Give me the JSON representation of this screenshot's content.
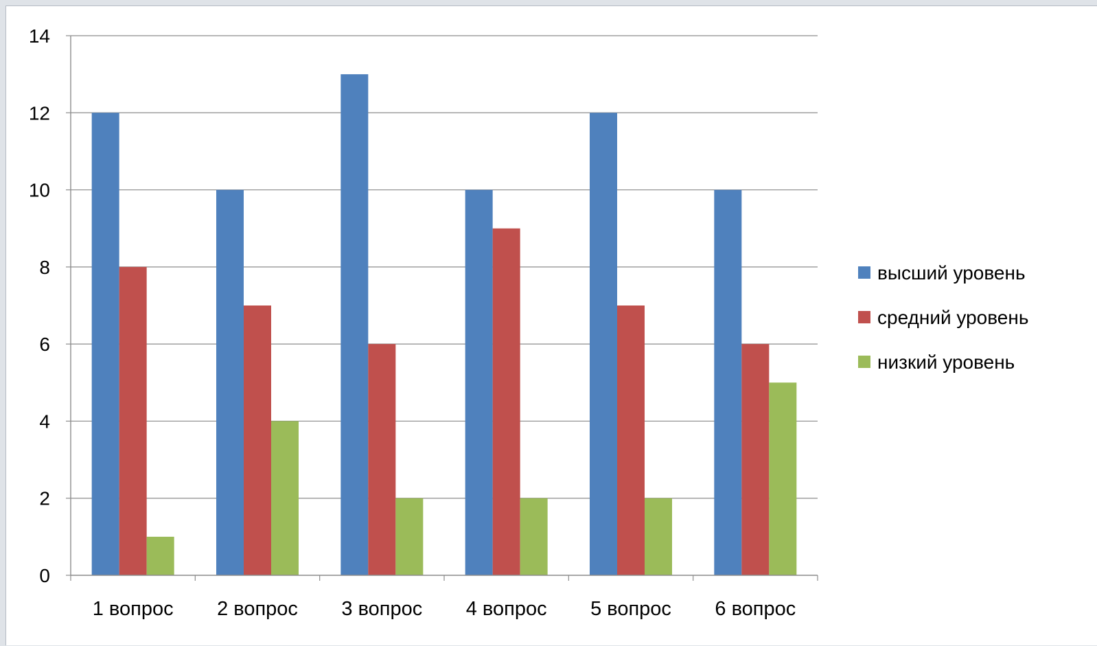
{
  "chart_data": {
    "type": "bar",
    "categories": [
      "1 вопрос",
      "2 вопрос",
      "3 вопрос",
      "4 вопрос",
      "5 вопрос",
      "6 вопрос"
    ],
    "series": [
      {
        "name": "высший уровень",
        "color": "#4f81bd",
        "values": [
          12,
          10,
          13,
          10,
          12,
          10
        ]
      },
      {
        "name": "средний уровень",
        "color": "#c0504d",
        "values": [
          8,
          7,
          6,
          9,
          7,
          6
        ]
      },
      {
        "name": "низкий уровень",
        "color": "#9bbb59",
        "values": [
          1,
          4,
          2,
          2,
          2,
          5
        ]
      }
    ],
    "ylim": [
      0,
      14
    ],
    "yticks": [
      0,
      2,
      4,
      6,
      8,
      10,
      12,
      14
    ],
    "grid": true,
    "legend_position": "right",
    "title": "",
    "xlabel": "",
    "ylabel": ""
  }
}
